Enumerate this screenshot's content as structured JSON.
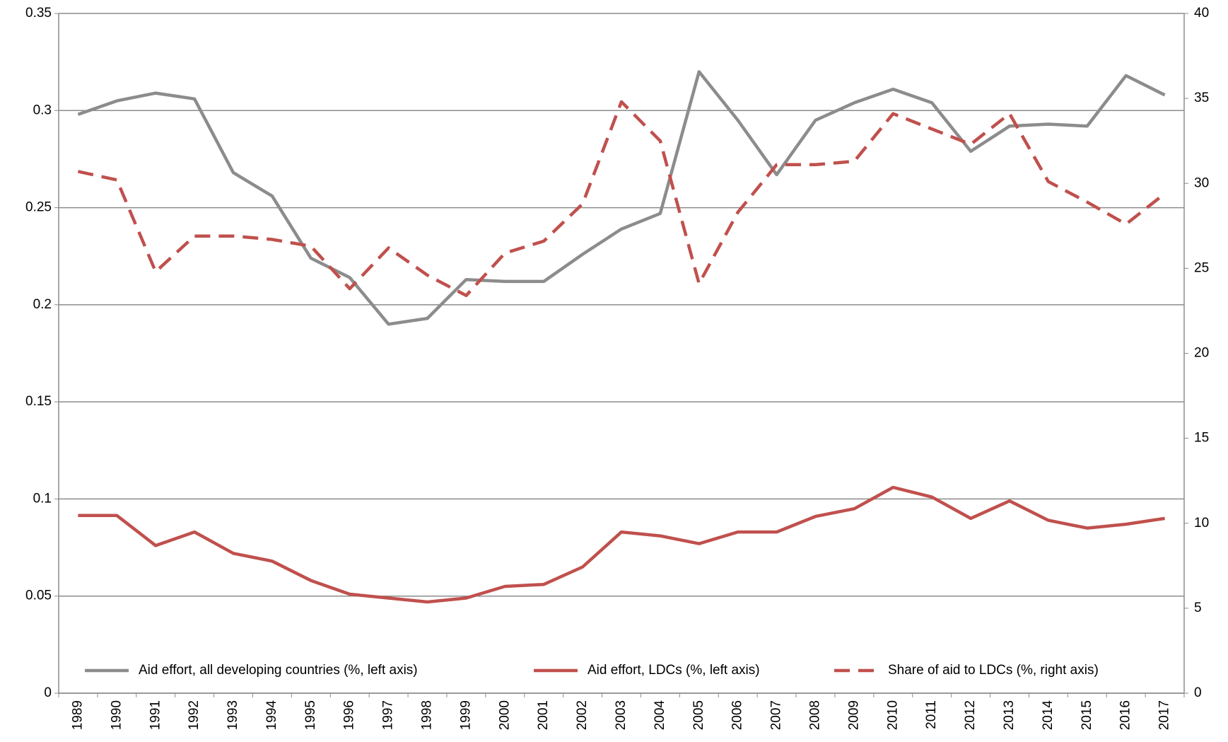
{
  "chart_data": {
    "type": "line",
    "categories": [
      "1989",
      "1990",
      "1991",
      "1992",
      "1993",
      "1994",
      "1995",
      "1996",
      "1997",
      "1998",
      "1999",
      "2000",
      "2001",
      "2002",
      "2003",
      "2004",
      "2005",
      "2006",
      "2007",
      "2008",
      "2009",
      "2010",
      "2011",
      "2012",
      "2013",
      "2014",
      "2015",
      "2016",
      "2017"
    ],
    "series": [
      {
        "name": "Aid effort, all developing countries  (%, left axis)",
        "color": "#8c8c8c",
        "style": "solid",
        "values": [
          0.298,
          0.305,
          0.309,
          0.306,
          0.268,
          0.256,
          0.224,
          0.214,
          0.19,
          0.193,
          0.213,
          0.212,
          0.212,
          0.226,
          0.239,
          0.247,
          0.32,
          0.295,
          0.267,
          0.295,
          0.304,
          0.311,
          0.304,
          0.279,
          0.292,
          0.293,
          0.292,
          0.318,
          0.308
        ]
      },
      {
        "name": "Aid effort, LDCs  (%, left axis)",
        "color": "#c0504d",
        "style": "solid",
        "values": [
          0.0915,
          0.0915,
          0.076,
          0.083,
          0.072,
          0.068,
          0.058,
          0.051,
          0.049,
          0.047,
          0.049,
          0.055,
          0.056,
          0.065,
          0.083,
          0.081,
          0.077,
          0.083,
          0.083,
          0.091,
          0.095,
          0.106,
          0.101,
          0.09,
          0.099,
          0.089,
          0.085,
          0.087,
          0.09
        ]
      },
      {
        "name": "Share of aid to LDCs (%, right axis)",
        "color": "#c0504d",
        "style": "dashed",
        "axis": "y2",
        "values": [
          30.7,
          30.2,
          24.8,
          26.9,
          26.9,
          26.7,
          26.3,
          23.8,
          26.2,
          24.6,
          23.4,
          25.9,
          26.6,
          28.8,
          34.8,
          32.5,
          24.1,
          28.3,
          31.1,
          31.1,
          31.3,
          34.1,
          33.2,
          32.3,
          34.1,
          30.1,
          28.9,
          27.6,
          29.4
        ]
      }
    ],
    "ylim": [
      0,
      0.35
    ],
    "yticks": [
      0,
      0.05,
      0.1,
      0.15,
      0.2,
      0.25,
      0.3,
      0.35
    ],
    "y2lim": [
      0,
      40
    ],
    "y2ticks": [
      0,
      5,
      10,
      15,
      20,
      25,
      30,
      35,
      40
    ],
    "grid": true,
    "legend": "bottom"
  }
}
